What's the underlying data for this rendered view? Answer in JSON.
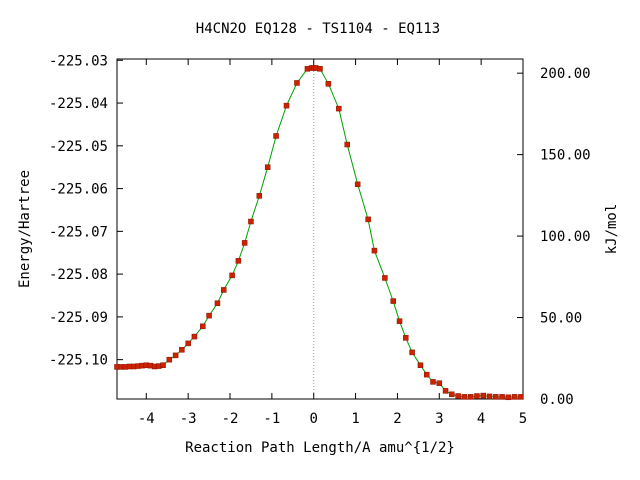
{
  "chart_data": {
    "type": "line",
    "title": "H4CN2O   EQ128 - TS1104 - EQ113",
    "xlabel": "Reaction Path Length/A amu^{1/2}",
    "ylabel": "Energy/Hartree",
    "y2label": "kJ/mol",
    "xlim": [
      -4.7,
      5.0
    ],
    "ylim": [
      -225.1092,
      -225.0297
    ],
    "y2lim": [
      0.0,
      208.7
    ],
    "xticks": [
      "-4",
      "-3",
      "-2",
      "-1",
      "0",
      "1",
      "2",
      "3",
      "4",
      "5"
    ],
    "xtick_values": [
      -4,
      -3,
      -2,
      -1,
      0,
      1,
      2,
      3,
      4,
      5
    ],
    "yticks": [
      "-225.03",
      "-225.04",
      "-225.05",
      "-225.06",
      "-225.07",
      "-225.08",
      "-225.09",
      "-225.10"
    ],
    "ytick_values": [
      -225.03,
      -225.04,
      -225.05,
      -225.06,
      -225.07,
      -225.08,
      -225.09,
      -225.1
    ],
    "y2ticks": [
      "200.00",
      "150.00",
      "100.00",
      "50.00",
      "0.00"
    ],
    "y2tick_values": [
      200,
      150,
      100,
      50,
      0
    ],
    "ts_marker_x": 0.0,
    "grid": false,
    "colors": {
      "line": "#00a000",
      "marker": "#cc2200",
      "ts_line": "#999999",
      "axis": "#000000"
    },
    "series": [
      {
        "values": [
          [
            -4.7,
            -225.1017
          ],
          [
            -4.6,
            -225.1017
          ],
          [
            -4.5,
            -225.1017
          ],
          [
            -4.4,
            -225.1016
          ],
          [
            -4.3,
            -225.1016
          ],
          [
            -4.2,
            -225.1015
          ],
          [
            -4.1,
            -225.1014
          ],
          [
            -4.0,
            -225.1013
          ],
          [
            -3.9,
            -225.1014
          ],
          [
            -3.8,
            -225.1016
          ],
          [
            -3.7,
            -225.1015
          ],
          [
            -3.6,
            -225.1013
          ],
          [
            -3.45,
            -225.1
          ],
          [
            -3.3,
            -225.099
          ],
          [
            -3.15,
            -225.0977
          ],
          [
            -3.0,
            -225.0962
          ],
          [
            -2.85,
            -225.0946
          ],
          [
            -2.65,
            -225.0922
          ],
          [
            -2.5,
            -225.0897
          ],
          [
            -2.3,
            -225.0868
          ],
          [
            -2.15,
            -225.0837
          ],
          [
            -1.95,
            -225.0803
          ],
          [
            -1.8,
            -225.0769
          ],
          [
            -1.65,
            -225.0727
          ],
          [
            -1.5,
            -225.0677
          ],
          [
            -1.3,
            -225.0617
          ],
          [
            -1.1,
            -225.055
          ],
          [
            -0.9,
            -225.0477
          ],
          [
            -0.65,
            -225.0406
          ],
          [
            -0.4,
            -225.0353
          ],
          [
            -0.15,
            -225.032
          ],
          [
            -0.05,
            -225.0318
          ],
          [
            0.0,
            -225.0318
          ],
          [
            0.05,
            -225.0318
          ],
          [
            0.15,
            -225.032
          ],
          [
            0.35,
            -225.0355
          ],
          [
            0.6,
            -225.0413
          ],
          [
            0.8,
            -225.0497
          ],
          [
            1.05,
            -225.059
          ],
          [
            1.3,
            -225.0672
          ],
          [
            1.45,
            -225.0745
          ],
          [
            1.7,
            -225.0809
          ],
          [
            1.9,
            -225.0863
          ],
          [
            2.05,
            -225.091
          ],
          [
            2.2,
            -225.0949
          ],
          [
            2.35,
            -225.0983
          ],
          [
            2.55,
            -225.1013
          ],
          [
            2.7,
            -225.1035
          ],
          [
            2.85,
            -225.1052
          ],
          [
            3.0,
            -225.1055
          ],
          [
            3.15,
            -225.1073
          ],
          [
            3.3,
            -225.1081
          ],
          [
            3.45,
            -225.1085
          ],
          [
            3.6,
            -225.1087
          ],
          [
            3.75,
            -225.1087
          ],
          [
            3.9,
            -225.1085
          ],
          [
            4.05,
            -225.1084
          ],
          [
            4.2,
            -225.1086
          ],
          [
            4.35,
            -225.1087
          ],
          [
            4.5,
            -225.1087
          ],
          [
            4.65,
            -225.1088
          ],
          [
            4.8,
            -225.1087
          ],
          [
            4.95,
            -225.1087
          ]
        ]
      }
    ]
  }
}
